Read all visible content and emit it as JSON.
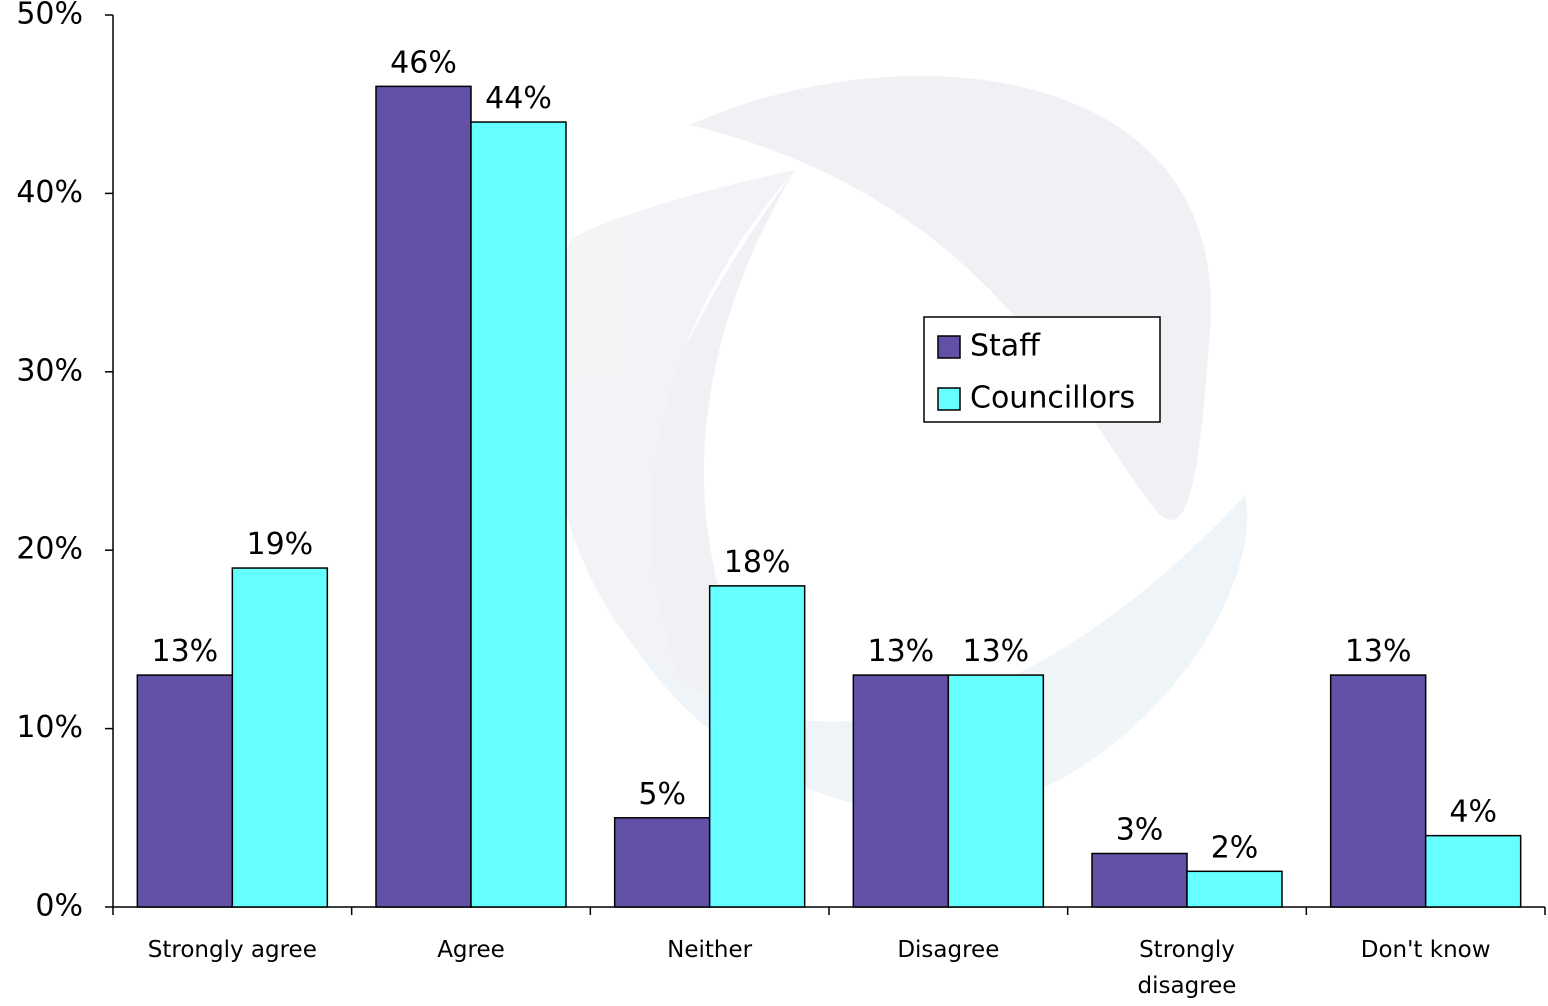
{
  "chart_data": {
    "type": "bar",
    "categories": [
      "Strongly agree",
      "Agree",
      "Neither",
      "Disagree",
      "Strongly disagree",
      "Don't know"
    ],
    "series": [
      {
        "name": "Staff",
        "color": "#6351a8",
        "values": [
          13,
          46,
          5,
          13,
          3,
          13
        ],
        "value_labels": [
          "13%",
          "46%",
          "5%",
          "13%",
          "3%",
          "13%"
        ]
      },
      {
        "name": "Councillors",
        "color": "#66ffff",
        "values": [
          19,
          44,
          18,
          13,
          2,
          4
        ],
        "value_labels": [
          "19%",
          "44%",
          "18%",
          "13%",
          "2%",
          "4%"
        ]
      }
    ],
    "ylim": [
      0,
      50
    ],
    "yticks": [
      {
        "value": 0,
        "label": "0%"
      },
      {
        "value": 10,
        "label": "10%"
      },
      {
        "value": 20,
        "label": "20%"
      },
      {
        "value": 30,
        "label": "30%"
      },
      {
        "value": 40,
        "label": "40%"
      },
      {
        "value": 50,
        "label": "50%"
      }
    ],
    "grid": false,
    "legend": "upper-right"
  }
}
